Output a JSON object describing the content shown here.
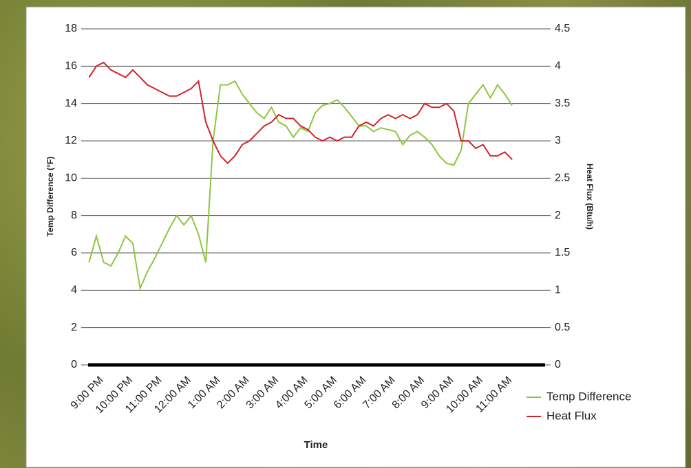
{
  "chart_data": {
    "type": "line",
    "x_label": "Time",
    "y_label": "Temp Difference (°F)",
    "y2_label": "Heat Flux (Btu/h)",
    "categories": [
      null,
      "9:00 PM",
      null,
      null,
      null,
      "10:00 PM",
      null,
      null,
      null,
      "11:00 PM",
      null,
      null,
      null,
      "12:00 AM",
      null,
      null,
      null,
      "1:00 AM",
      null,
      null,
      null,
      "2:00 AM",
      null,
      null,
      null,
      "3:00 AM",
      null,
      null,
      null,
      "4:00 AM",
      null,
      null,
      null,
      "5:00 AM",
      null,
      null,
      null,
      "6:00 AM",
      null,
      null,
      null,
      "7:00 AM",
      null,
      null,
      null,
      "8:00 AM",
      null,
      null,
      null,
      "9:00 AM",
      null,
      null,
      null,
      "10:00 AM",
      null,
      null,
      null,
      "11:00 AM",
      null
    ],
    "series": [
      {
        "name": "Temp Difference",
        "color": "#8dc63f",
        "values": [
          5.5,
          6.9,
          5.5,
          5.3,
          6,
          6.9,
          6.5,
          4.1,
          5.0,
          5.7,
          6.5,
          7.3,
          8.0,
          7.5,
          8.0,
          7.0,
          5.5,
          12,
          15,
          15,
          15.2,
          14.5,
          14,
          13.5,
          13.2,
          13.8,
          13,
          12.8,
          12.2,
          12.7,
          12.5,
          13.5,
          13.9,
          14,
          14.2,
          13.8,
          13.3,
          12.8,
          12.8,
          12.5,
          12.7,
          12.6,
          12.5,
          11.8,
          12.3,
          12.5,
          12.2,
          11.8,
          11.2,
          10.8,
          10.7,
          11.5,
          14.0,
          14.5,
          15,
          14.3,
          15,
          14.5,
          13.9
        ]
      },
      {
        "name": "Heat Flux",
        "color": "#d2232a",
        "axis": "y2",
        "values": [
          3.85,
          4.0,
          4.05,
          3.95,
          3.9,
          3.85,
          3.95,
          3.85,
          3.75,
          3.7,
          3.65,
          3.6,
          3.6,
          3.65,
          3.7,
          3.8,
          3.25,
          3.0,
          2.8,
          2.7,
          2.8,
          2.95,
          3.0,
          3.1,
          3.2,
          3.25,
          3.35,
          3.3,
          3.3,
          3.2,
          3.15,
          3.05,
          3.0,
          3.05,
          3.0,
          3.05,
          3.05,
          3.2,
          3.25,
          3.2,
          3.3,
          3.35,
          3.3,
          3.35,
          3.3,
          3.35,
          3.5,
          3.45,
          3.45,
          3.5,
          3.4,
          3.0,
          3.0,
          2.9,
          2.95,
          2.8,
          2.8,
          2.85,
          2.75
        ]
      }
    ],
    "ylim": [
      0,
      18
    ],
    "yticks": [
      0,
      2,
      4,
      6,
      8,
      10,
      12,
      14,
      16,
      18
    ],
    "y2lim": [
      0,
      4.5
    ],
    "y2ticks": [
      0,
      0.5,
      1,
      1.5,
      2,
      2.5,
      3,
      3.5,
      4,
      4.5
    ],
    "grid": true,
    "legend": "right"
  }
}
